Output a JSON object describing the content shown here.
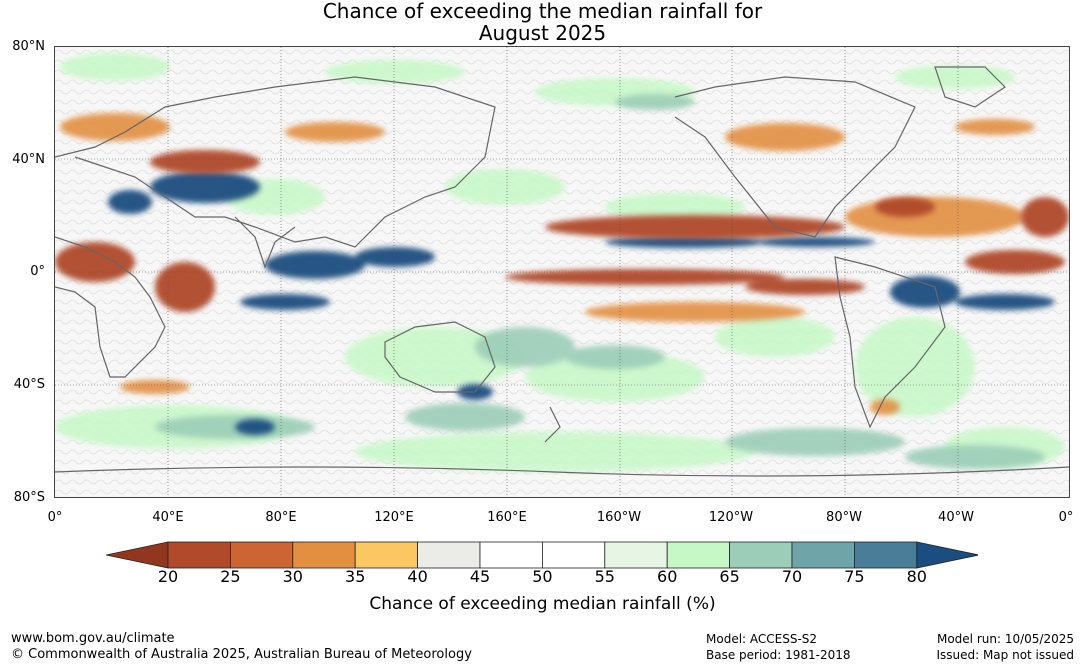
{
  "title_line1": "Chance of exceeding the median rainfall for",
  "title_line2": "August 2025",
  "lat_labels": [
    "80°N",
    "40°N",
    "0°",
    "40°S",
    "80°S"
  ],
  "lon_labels": [
    "0°",
    "40°E",
    "80°E",
    "120°E",
    "160°E",
    "160°W",
    "120°W",
    "80°W",
    "40°W",
    "0°"
  ],
  "colorbar": {
    "ticks": [
      "20",
      "25",
      "30",
      "35",
      "40",
      "45",
      "50",
      "55",
      "60",
      "65",
      "70",
      "75",
      "80"
    ],
    "colors": [
      "#b04a2a",
      "#cc6533",
      "#e28f42",
      "#fbc763",
      "#ebebe8",
      "#ffffff",
      "#ffffff",
      "#e7f5e5",
      "#c6f8c6",
      "#9ccdb8",
      "#6fa5a8",
      "#4a7e98"
    ],
    "low_extend_color": "#923620",
    "high_extend_color": "#1a4e80",
    "title": "Chance of exceeding median rainfall (%)"
  },
  "footer": {
    "website": "www.bom.gov.au/climate",
    "copyright": "© Commonwealth of Australia 2025, Australian Bureau of Meteorology",
    "model": "Model: ACCESS-S2",
    "base_period": "Base period: 1981-2018",
    "model_run": "Model run: 10/05/2025",
    "issued": "Issued: Map not issued"
  }
}
